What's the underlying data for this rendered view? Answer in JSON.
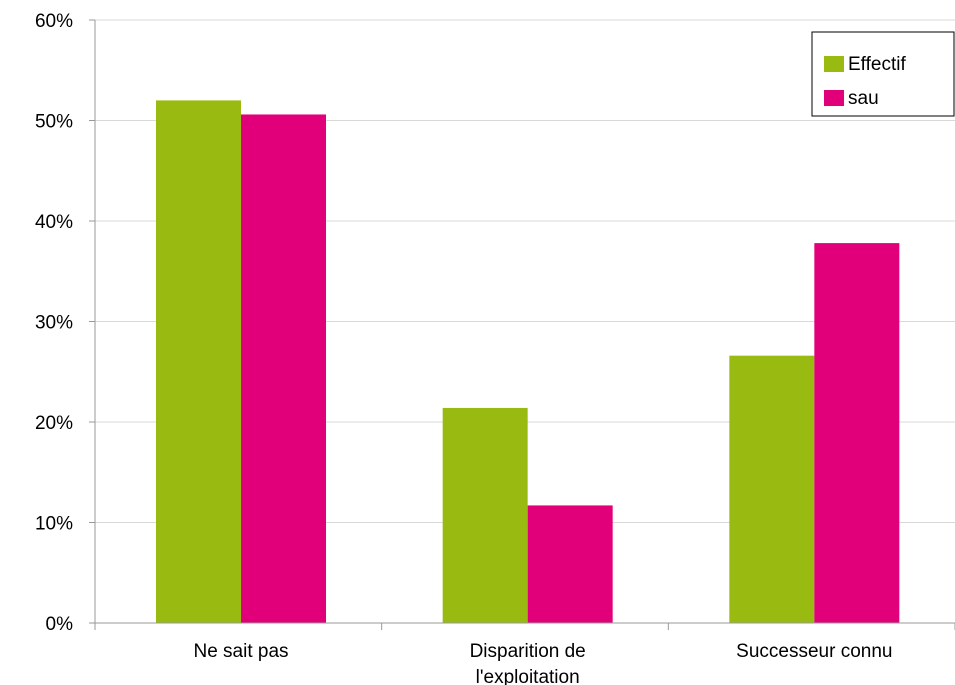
{
  "chart_data": {
    "type": "bar",
    "categories": [
      "Ne sait pas",
      "Disparition de l'exploitation",
      "Successeur connu"
    ],
    "category_lines": [
      [
        "Ne sait pas"
      ],
      [
        "Disparition de",
        "l'exploitation"
      ],
      [
        "Successeur connu"
      ]
    ],
    "series": [
      {
        "name": "Effectif",
        "values": [
          52,
          21.4,
          26.6
        ],
        "color": "#99bb11"
      },
      {
        "name": "sau",
        "values": [
          50.6,
          11.7,
          37.8
        ],
        "color": "#e2007a"
      }
    ],
    "ylim": [
      0,
      60
    ],
    "yticks": [
      0,
      10,
      20,
      30,
      40,
      50,
      60
    ],
    "ytick_labels": [
      "0%",
      "10%",
      "20%",
      "30%",
      "40%",
      "50%",
      "60%"
    ],
    "grid": true,
    "legend_position": "top-right",
    "title": "",
    "xlabel": "",
    "ylabel": ""
  }
}
